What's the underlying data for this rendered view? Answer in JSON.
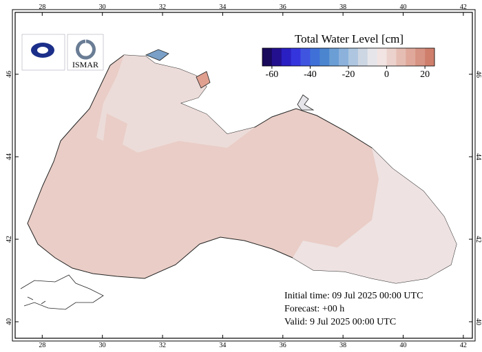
{
  "map": {
    "title": "Total Water Level [cm]",
    "colorbar": {
      "lim": [
        -65,
        25
      ],
      "ticks": [
        -60,
        -40,
        -20,
        0,
        20
      ],
      "colors": [
        "#1a0a5c",
        "#23108f",
        "#2a1fc2",
        "#3535dd",
        "#3f55e0",
        "#3f70d8",
        "#4b85cf",
        "#6b9ed4",
        "#8cb2dc",
        "#aec6e0",
        "#cdd6e3",
        "#e6e6ea",
        "#f2e4e2",
        "#ecd2cc",
        "#e6bdb3",
        "#dfa89a",
        "#d79383",
        "#cf7e6c"
      ]
    },
    "xlim": [
      27.1,
      42.3
    ],
    "xticks": [
      28,
      30,
      32,
      34,
      36,
      38,
      40,
      42
    ],
    "ylim": [
      39.6,
      47.5
    ],
    "yticks": [
      40,
      42,
      44,
      46
    ],
    "logo": "ISMAR",
    "info": [
      "Initial time: 09 Jul 2025 00:00 UTC",
      "Forecast: +00 h",
      "Valid:  9 Jul 2025 00:00 UTC"
    ]
  }
}
